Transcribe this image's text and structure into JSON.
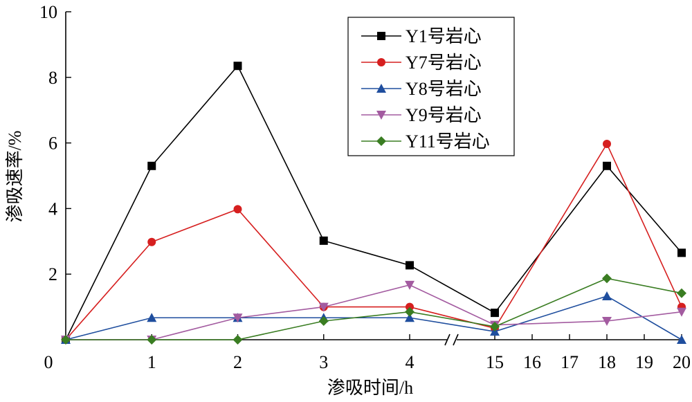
{
  "chart_data": {
    "type": "line",
    "title": "",
    "xlabel": "渗吸时间/h",
    "ylabel": "渗吸速率/%",
    "ylim": [
      0,
      10
    ],
    "y_ticks": [
      "10",
      "8",
      "6",
      "4",
      "2",
      "0"
    ],
    "x_ticks": [
      "1",
      "2",
      "3",
      "4",
      "15",
      "16",
      "17",
      "18",
      "19",
      "20"
    ],
    "x_break": "//",
    "grid": false,
    "legend_position": "top-right",
    "x": [
      0,
      1,
      2,
      3,
      4,
      15,
      18,
      20
    ],
    "series": [
      {
        "name": "Y1号岩心",
        "marker": "square",
        "color": "#000000",
        "values": [
          0,
          5.3,
          8.35,
          3.02,
          2.27,
          0.82,
          5.3,
          2.65
        ]
      },
      {
        "name": "Y7号岩心",
        "marker": "circle",
        "color": "#d61f1f",
        "values": [
          0,
          2.98,
          3.98,
          1.0,
          1.0,
          0.35,
          5.97,
          1.0
        ]
      },
      {
        "name": "Y8号岩心",
        "marker": "triangle-up",
        "color": "#1f4e9e",
        "values": [
          0,
          0.67,
          0.67,
          0.67,
          0.67,
          0.25,
          1.33,
          0
        ]
      },
      {
        "name": "Y9号岩心",
        "marker": "triangle-down",
        "color": "#a35ba0",
        "values": [
          0,
          0,
          0.67,
          1.0,
          1.67,
          0.45,
          0.57,
          0.85
        ]
      },
      {
        "name": "Y11号岩心",
        "marker": "diamond",
        "color": "#3a7d22",
        "values": [
          0,
          0,
          0,
          0.57,
          0.85,
          0.4,
          1.87,
          1.42
        ]
      }
    ]
  }
}
